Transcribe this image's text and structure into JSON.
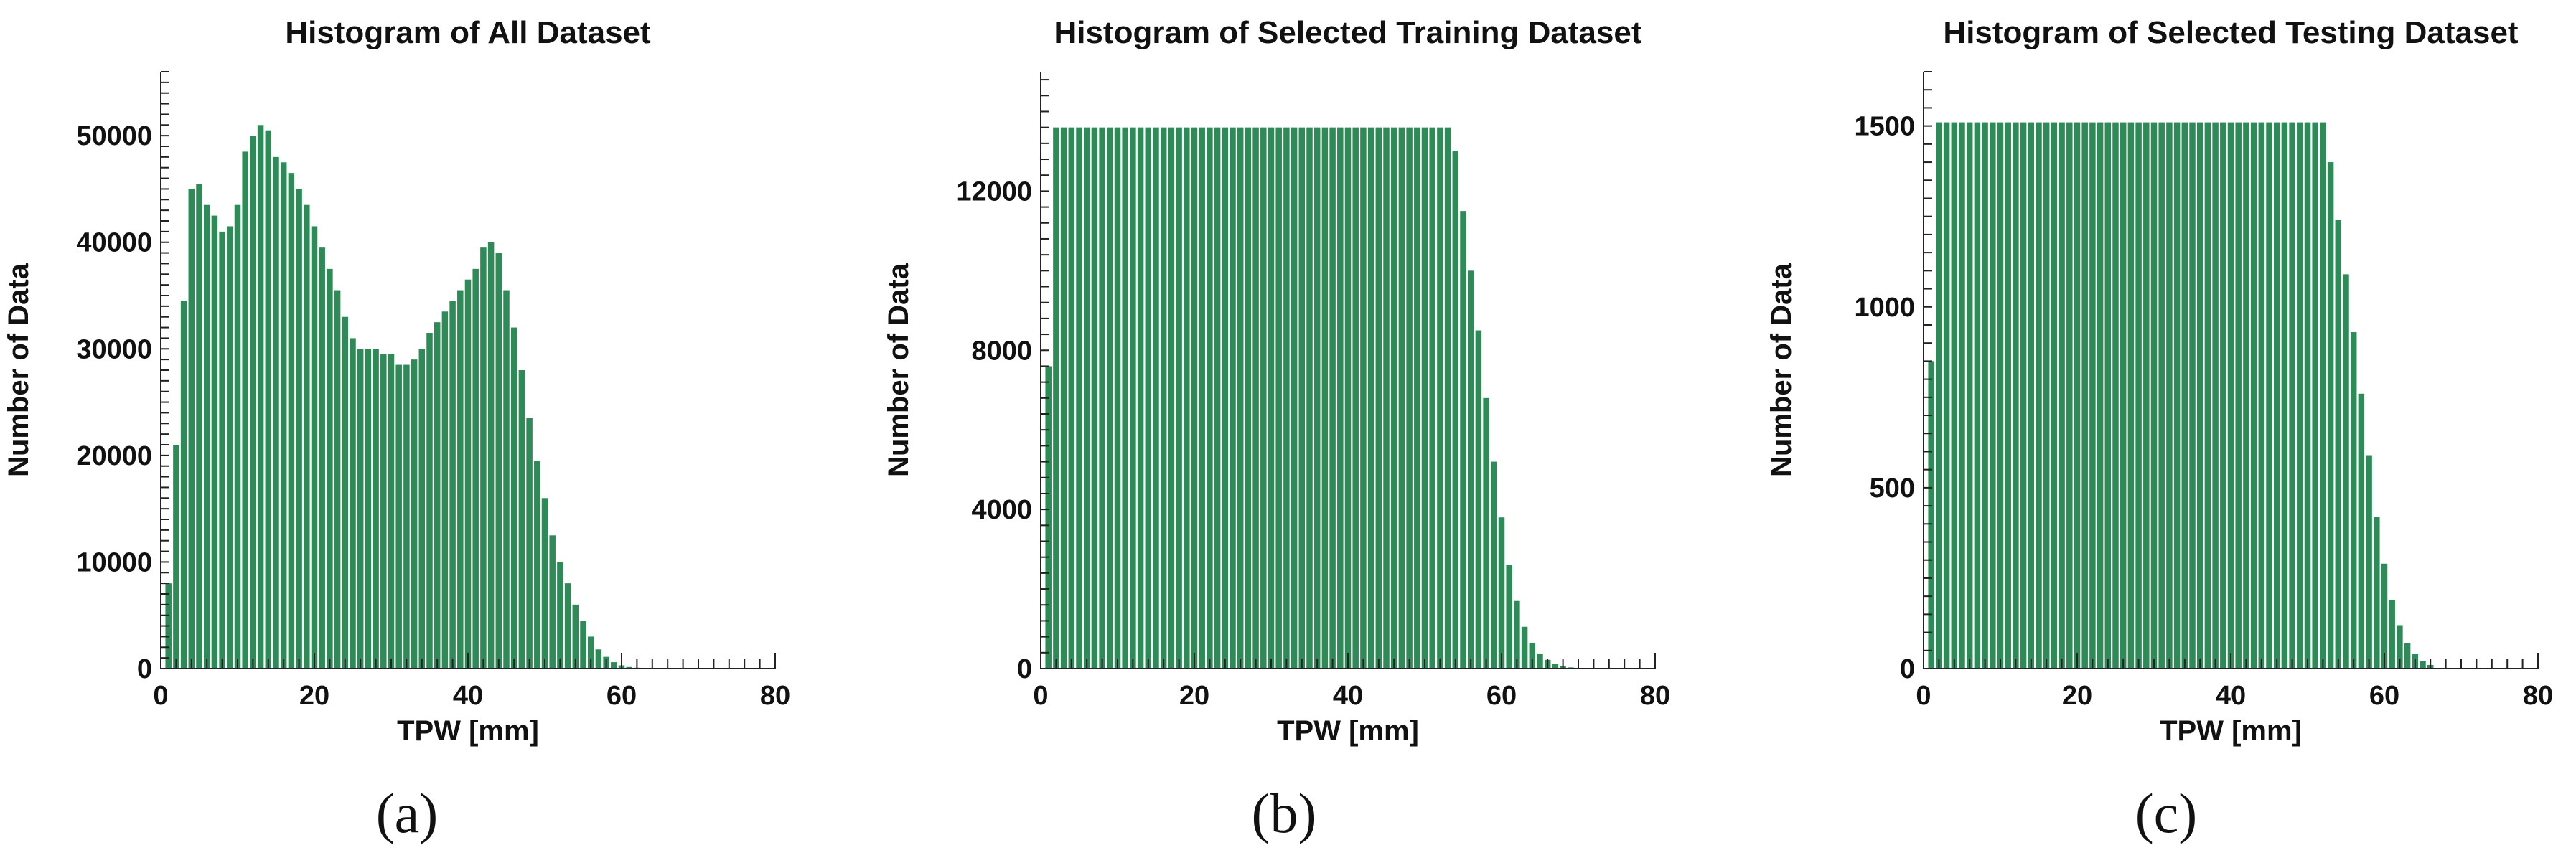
{
  "figure": {
    "panel_labels": [
      "(a)",
      "(b)",
      "(c)"
    ]
  },
  "colors": {
    "bar": "#2e8b57",
    "axis": "#222222",
    "text": "#111111",
    "background": "#ffffff"
  },
  "chart_data": [
    {
      "type": "bar",
      "title": "Histogram of All Dataset",
      "xlabel": "TPW [mm]",
      "ylabel": "Number of Data",
      "xlim": [
        0,
        80
      ],
      "ylim": [
        0,
        56000
      ],
      "xticks": [
        0,
        20,
        40,
        60,
        80
      ],
      "yticks": [
        0,
        10000,
        20000,
        30000,
        40000,
        50000
      ],
      "bin_start": 1,
      "bin_width": 1,
      "values": [
        8000,
        21000,
        34500,
        45000,
        45500,
        43500,
        42500,
        41000,
        41500,
        43500,
        48500,
        50000,
        51000,
        50500,
        48000,
        47500,
        46500,
        45000,
        43500,
        41500,
        39500,
        37500,
        35500,
        33000,
        31000,
        30000,
        30000,
        30000,
        29500,
        29500,
        28500,
        28500,
        29000,
        30000,
        31500,
        32500,
        33500,
        34500,
        35500,
        36500,
        37500,
        39500,
        40000,
        39000,
        35500,
        32000,
        28000,
        23500,
        19500,
        16000,
        12500,
        10000,
        8000,
        6000,
        4500,
        3000,
        1800,
        1100,
        600,
        300,
        150,
        80,
        40,
        20,
        10
      ]
    },
    {
      "type": "bar",
      "title": "Histogram of Selected Training Dataset",
      "xlabel": "TPW [mm]",
      "ylabel": "Number of Data",
      "xlim": [
        0,
        80
      ],
      "ylim": [
        0,
        15000
      ],
      "xticks": [
        0,
        20,
        40,
        60,
        80
      ],
      "yticks": [
        0,
        4000,
        8000,
        12000
      ],
      "bin_start": 1,
      "bin_width": 1,
      "values": [
        7600,
        13600,
        13600,
        13600,
        13600,
        13600,
        13600,
        13600,
        13600,
        13600,
        13600,
        13600,
        13600,
        13600,
        13600,
        13600,
        13600,
        13600,
        13600,
        13600,
        13600,
        13600,
        13600,
        13600,
        13600,
        13600,
        13600,
        13600,
        13600,
        13600,
        13600,
        13600,
        13600,
        13600,
        13600,
        13600,
        13600,
        13600,
        13600,
        13600,
        13600,
        13600,
        13600,
        13600,
        13600,
        13600,
        13600,
        13600,
        13600,
        13600,
        13600,
        13600,
        13600,
        13000,
        11500,
        10000,
        8500,
        6800,
        5200,
        3800,
        2600,
        1700,
        1050,
        650,
        380,
        220,
        120,
        60,
        30
      ]
    },
    {
      "type": "bar",
      "title": "Histogram of Selected Testing Dataset",
      "xlabel": "TPW [mm]",
      "ylabel": "Number of Data",
      "xlim": [
        0,
        80
      ],
      "ylim": [
        0,
        1650
      ],
      "xticks": [
        0,
        20,
        40,
        60,
        80
      ],
      "yticks": [
        0,
        500,
        1000,
        1500
      ],
      "bin_start": 1,
      "bin_width": 1,
      "values": [
        850,
        1510,
        1510,
        1510,
        1510,
        1510,
        1510,
        1510,
        1510,
        1510,
        1510,
        1510,
        1510,
        1510,
        1510,
        1510,
        1510,
        1510,
        1510,
        1510,
        1510,
        1510,
        1510,
        1510,
        1510,
        1510,
        1510,
        1510,
        1510,
        1510,
        1510,
        1510,
        1510,
        1510,
        1510,
        1510,
        1510,
        1510,
        1510,
        1510,
        1510,
        1510,
        1510,
        1510,
        1510,
        1510,
        1510,
        1510,
        1510,
        1510,
        1510,
        1510,
        1400,
        1240,
        1090,
        930,
        760,
        590,
        420,
        290,
        190,
        120,
        70,
        40,
        20,
        10
      ]
    }
  ]
}
